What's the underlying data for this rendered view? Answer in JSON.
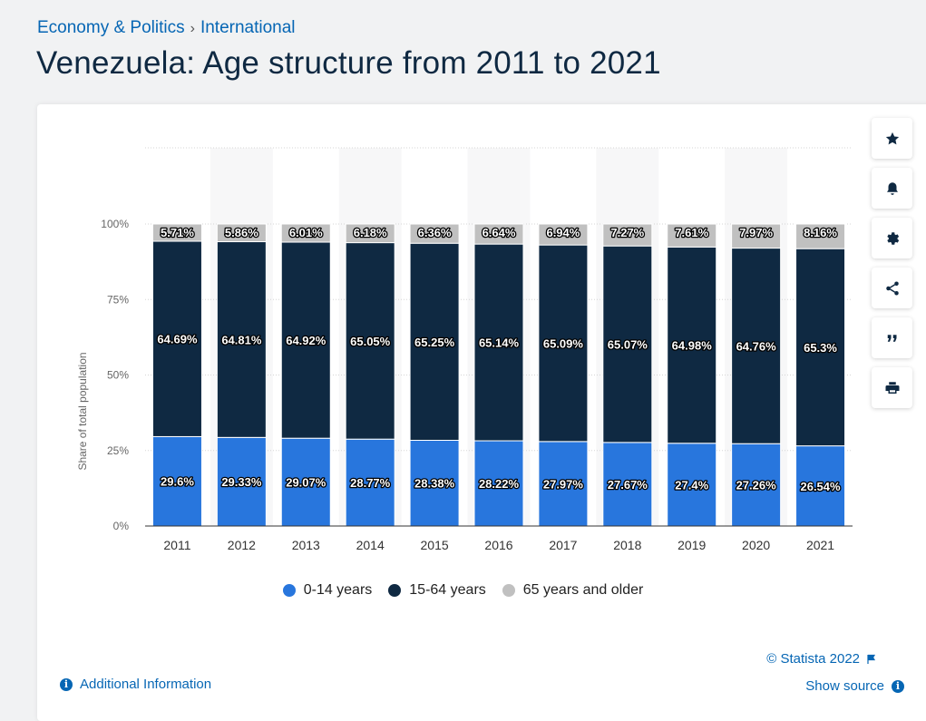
{
  "breadcrumb": {
    "items": [
      "Economy & Politics",
      "International"
    ],
    "separator": "›"
  },
  "title": "Venezuela: Age structure from 2011 to 2021",
  "toolbar": [
    "star-icon",
    "bell-icon",
    "gear-icon",
    "share-icon",
    "quote-icon",
    "print-icon"
  ],
  "footer": {
    "copyright": "© Statista 2022",
    "show_source": "Show source",
    "additional_info": "Additional Information"
  },
  "colors": {
    "young": "#2876dd",
    "working": "#0f2942",
    "old": "#c0c0c0",
    "link": "#0666b4"
  },
  "chart_data": {
    "type": "bar",
    "stacked": true,
    "categories": [
      "2011",
      "2012",
      "2013",
      "2014",
      "2015",
      "2016",
      "2017",
      "2018",
      "2019",
      "2020",
      "2021"
    ],
    "series": [
      {
        "name": "0-14 years",
        "color": "#2876dd",
        "values": [
          29.6,
          29.33,
          29.07,
          28.77,
          28.38,
          28.22,
          27.97,
          27.67,
          27.4,
          27.26,
          26.54
        ],
        "labels": [
          "29.6%",
          "29.33%",
          "29.07%",
          "28.77%",
          "28.38%",
          "28.22%",
          "27.97%",
          "27.67%",
          "27.4%",
          "27.26%",
          "26.54%"
        ]
      },
      {
        "name": "15-64 years",
        "color": "#0f2942",
        "values": [
          64.69,
          64.81,
          64.92,
          65.05,
          65.25,
          65.14,
          65.09,
          65.07,
          64.98,
          64.76,
          65.3
        ],
        "labels": [
          "64.69%",
          "64.81%",
          "64.92%",
          "65.05%",
          "65.25%",
          "65.14%",
          "65.09%",
          "65.07%",
          "64.98%",
          "64.76%",
          "65.3%"
        ]
      },
      {
        "name": "65 years and older",
        "color": "#c0c0c0",
        "values": [
          5.71,
          5.86,
          6.01,
          6.18,
          6.36,
          6.64,
          6.94,
          7.27,
          7.61,
          7.97,
          8.16
        ],
        "labels": [
          "5.71%",
          "5.86%",
          "6.01%",
          "6.18%",
          "6.36%",
          "6.64%",
          "6.94%",
          "7.27%",
          "7.61%",
          "7.97%",
          "8.16%"
        ]
      }
    ],
    "ylabel": "Share of total population",
    "yticks": [
      "0%",
      "25%",
      "50%",
      "75%",
      "100%"
    ],
    "ylim": [
      0,
      100
    ],
    "grid": true,
    "legend_position": "bottom"
  }
}
